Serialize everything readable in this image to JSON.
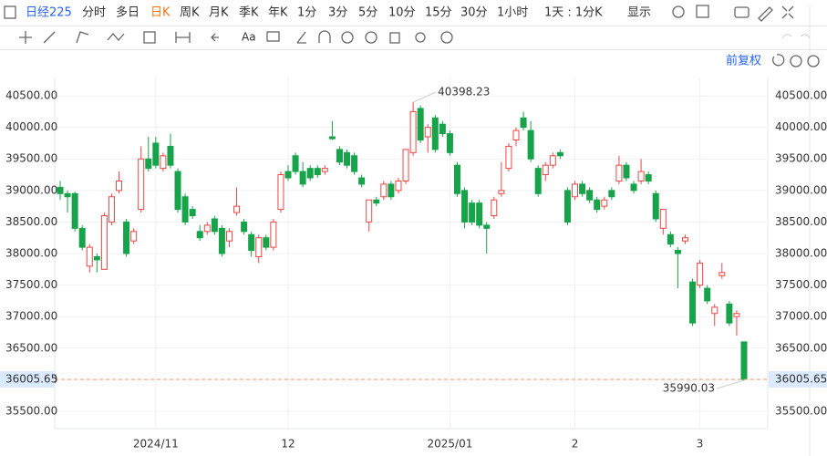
{
  "toolbar": {
    "symbol": "日经225",
    "periods": [
      "分时",
      "多日",
      "日K",
      "周K",
      "月K",
      "季K",
      "年K",
      "1分",
      "3分",
      "5分",
      "10分",
      "15分",
      "30分",
      "1小时",
      "1天 : 1分K"
    ],
    "active": 2,
    "display": "显示",
    "font_tool": "Aa"
  },
  "adjust": "前复权",
  "chart_data": {
    "type": "candlestick",
    "up_color": "#ef4444",
    "down_color": "#16a34a",
    "categories": [
      null,
      null,
      null,
      null,
      null,
      null,
      null,
      null,
      null,
      null,
      null,
      null,
      null,
      "2024/11",
      null,
      null,
      null,
      null,
      null,
      null,
      null,
      null,
      null,
      null,
      null,
      null,
      null,
      null,
      null,
      null,
      null,
      "12",
      null,
      null,
      null,
      null,
      null,
      null,
      null,
      null,
      null,
      null,
      null,
      null,
      null,
      null,
      null,
      null,
      null,
      null,
      null,
      null,
      null,
      "2025/01",
      null,
      null,
      null,
      null,
      null,
      null,
      null,
      null,
      null,
      null,
      null,
      null,
      null,
      null,
      null,
      null,
      "2",
      null,
      null,
      null,
      null,
      null,
      null,
      null,
      null,
      null,
      null,
      null,
      null,
      null,
      null,
      null,
      null,
      "3",
      null,
      null,
      null,
      null,
      null,
      null
    ],
    "ohlc": [
      [
        39050,
        39150,
        38850,
        38950
      ],
      [
        38950,
        39000,
        38650,
        38900
      ],
      [
        38950,
        38980,
        38350,
        38400
      ],
      [
        38400,
        38450,
        38050,
        38100
      ],
      [
        37800,
        38150,
        37700,
        38100
      ],
      [
        37950,
        38000,
        37700,
        37900
      ],
      [
        37750,
        38650,
        37750,
        38600
      ],
      [
        38500,
        38950,
        38450,
        38900
      ],
      [
        39000,
        39300,
        38950,
        39150
      ],
      [
        38500,
        38550,
        37950,
        38000
      ],
      [
        38200,
        38400,
        38150,
        38350
      ],
      [
        38700,
        39700,
        38650,
        39500
      ],
      [
        39500,
        39850,
        39300,
        39350
      ],
      [
        39750,
        39850,
        39350,
        39400
      ],
      [
        39350,
        39600,
        39300,
        39550
      ],
      [
        39700,
        39900,
        39350,
        39400
      ],
      [
        39300,
        39350,
        38650,
        38700
      ],
      [
        38900,
        38950,
        38450,
        38500
      ],
      [
        38700,
        38750,
        38550,
        38600
      ],
      [
        38350,
        38450,
        38200,
        38250
      ],
      [
        38350,
        38500,
        38300,
        38450
      ],
      [
        38550,
        38600,
        38300,
        38350
      ],
      [
        38400,
        38450,
        37950,
        38000
      ],
      [
        38200,
        38400,
        38100,
        38350
      ],
      [
        38650,
        39050,
        38600,
        38750
      ],
      [
        38500,
        38550,
        38300,
        38350
      ],
      [
        38300,
        38350,
        37950,
        38050
      ],
      [
        37950,
        38300,
        37850,
        38250
      ],
      [
        38250,
        38300,
        38050,
        38100
      ],
      [
        38100,
        38550,
        38050,
        38500
      ],
      [
        38700,
        39300,
        38650,
        39250
      ],
      [
        39300,
        39400,
        39150,
        39200
      ],
      [
        39550,
        39600,
        39250,
        39300
      ],
      [
        39300,
        39450,
        39050,
        39100
      ],
      [
        39350,
        39400,
        39150,
        39200
      ],
      [
        39350,
        39400,
        39200,
        39250
      ],
      [
        39300,
        39400,
        39250,
        39350
      ],
      [
        39850,
        40100,
        39800,
        39820
      ],
      [
        39650,
        39700,
        39400,
        39450
      ],
      [
        39600,
        39650,
        39350,
        39400
      ],
      [
        39550,
        39600,
        39250,
        39300
      ],
      [
        39200,
        39250,
        39050,
        39100
      ],
      [
        38500,
        38850,
        38350,
        38850
      ],
      [
        38850,
        38900,
        38750,
        38800
      ],
      [
        38900,
        39150,
        38850,
        39100
      ],
      [
        39100,
        39150,
        38850,
        38900
      ],
      [
        39000,
        39200,
        38950,
        39150
      ],
      [
        39150,
        39650,
        39100,
        39650
      ],
      [
        39600,
        40398.23,
        39550,
        40250
      ],
      [
        40300,
        40350,
        39750,
        39800
      ],
      [
        39850,
        40050,
        39600,
        40000
      ],
      [
        40150,
        40200,
        39600,
        39650
      ],
      [
        40050,
        40100,
        39850,
        39900
      ],
      [
        39900,
        39950,
        39550,
        39600
      ],
      [
        39400,
        39450,
        38900,
        38950
      ],
      [
        39000,
        39050,
        38400,
        38500
      ],
      [
        38800,
        38850,
        38450,
        38500
      ],
      [
        38800,
        38850,
        38400,
        38450
      ],
      [
        38450,
        38500,
        38000,
        38400
      ],
      [
        38600,
        38900,
        38550,
        38850
      ],
      [
        38950,
        39450,
        38900,
        39000
      ],
      [
        39350,
        39750,
        39300,
        39700
      ],
      [
        39800,
        40000,
        39700,
        39950
      ],
      [
        40150,
        40250,
        39950,
        40000
      ],
      [
        39950,
        40100,
        39450,
        39500
      ],
      [
        39350,
        39400,
        38900,
        38950
      ],
      [
        39250,
        39450,
        39150,
        39400
      ],
      [
        39400,
        39600,
        39350,
        39550
      ],
      [
        39600,
        39650,
        39500,
        39550
      ],
      [
        39000,
        39050,
        38450,
        38500
      ],
      [
        38900,
        39150,
        38850,
        39100
      ],
      [
        39100,
        39150,
        38900,
        38950
      ],
      [
        39000,
        39050,
        38800,
        38850
      ],
      [
        38850,
        38900,
        38650,
        38700
      ],
      [
        38750,
        38900,
        38700,
        38850
      ],
      [
        39000,
        39050,
        38850,
        38900
      ],
      [
        39150,
        39550,
        39100,
        39400
      ],
      [
        39400,
        39450,
        39150,
        39200
      ],
      [
        39100,
        39150,
        38950,
        39000
      ],
      [
        39150,
        39500,
        39100,
        39300
      ],
      [
        39250,
        39300,
        39100,
        39150
      ],
      [
        38950,
        39000,
        38500,
        38550
      ],
      [
        38400,
        38700,
        38300,
        38700
      ],
      [
        38300,
        38350,
        38100,
        38150
      ],
      [
        38050,
        38100,
        37450,
        38000
      ],
      [
        38200,
        38300,
        38150,
        38250
      ],
      [
        37550,
        37600,
        36850,
        36900
      ],
      [
        37500,
        37900,
        37450,
        37850
      ],
      [
        37450,
        37500,
        37200,
        37250
      ],
      [
        37050,
        37200,
        36850,
        37150
      ],
      [
        37650,
        37850,
        37600,
        37700
      ],
      [
        37200,
        37250,
        36850,
        36900
      ],
      [
        37000,
        37100,
        36700,
        37050
      ],
      [
        36600,
        36600,
        35990.03,
        36005.65
      ]
    ],
    "max_index": 48,
    "min_index": 93,
    "ylim": [
      35225,
      40790
    ],
    "yticks": [
      {
        "value": 35500,
        "label": "35500.00"
      },
      {
        "value": 36000,
        "label": "36000.00"
      },
      {
        "value": 36500,
        "label": "36500.00"
      },
      {
        "value": 37000,
        "label": "37000.00"
      },
      {
        "value": 37500,
        "label": "37500.00"
      },
      {
        "value": 38000,
        "label": "38000.00"
      },
      {
        "value": 38500,
        "label": "38500.00"
      },
      {
        "value": 39000,
        "label": "39000.00"
      },
      {
        "value": 39500,
        "label": "39500.00"
      },
      {
        "value": 40000,
        "label": "40000.00"
      },
      {
        "value": 40500,
        "label": "40500.00"
      }
    ],
    "grid": true
  }
}
